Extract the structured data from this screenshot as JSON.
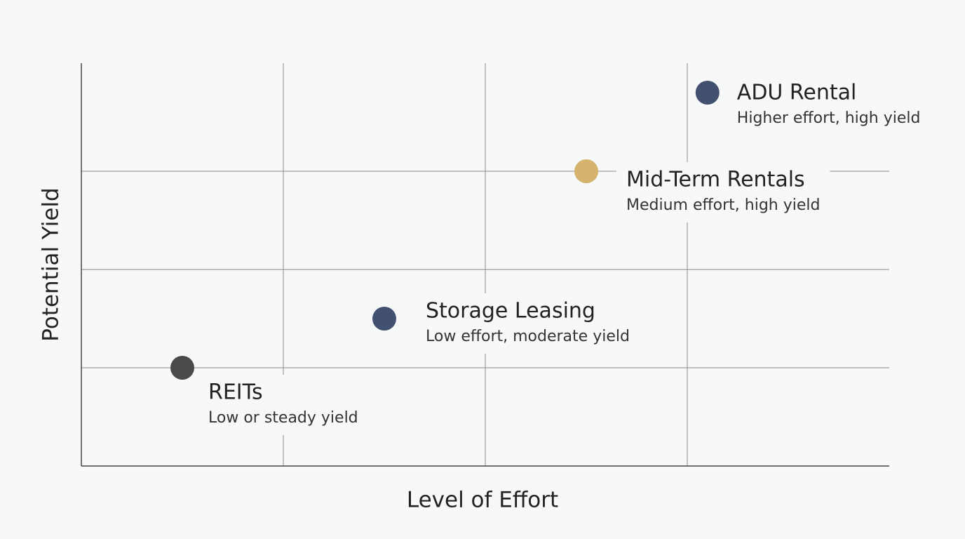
{
  "chart_data": {
    "type": "scatter",
    "x_label": "Level of Effort",
    "y_label": "Potential Yield",
    "xlim": [
      0,
      4
    ],
    "xticks": [
      1,
      2,
      3
    ],
    "ylim": [
      0,
      4.1
    ],
    "yticks": [
      1,
      2,
      3
    ],
    "grid": true,
    "series": [
      {
        "name": "REITs",
        "description": "Low or steady yield",
        "color": "#4a4a4a",
        "x": [
          0.5
        ],
        "values": [
          1
        ]
      },
      {
        "name": "Storage Leasing",
        "description": "Low effort, moderate yield",
        "color": "#435170",
        "x": [
          1.5
        ],
        "values": [
          1.5
        ]
      },
      {
        "name": "Mid-Term Rentals",
        "description": "Medium effort, high yield",
        "color": "#d5b36c",
        "x": [
          2.5
        ],
        "values": [
          3
        ]
      },
      {
        "name": "ADU Rental",
        "description": "Higher effort, high yield",
        "color": "#435170",
        "x": [
          3.1
        ],
        "values": [
          3.8
        ]
      }
    ]
  }
}
